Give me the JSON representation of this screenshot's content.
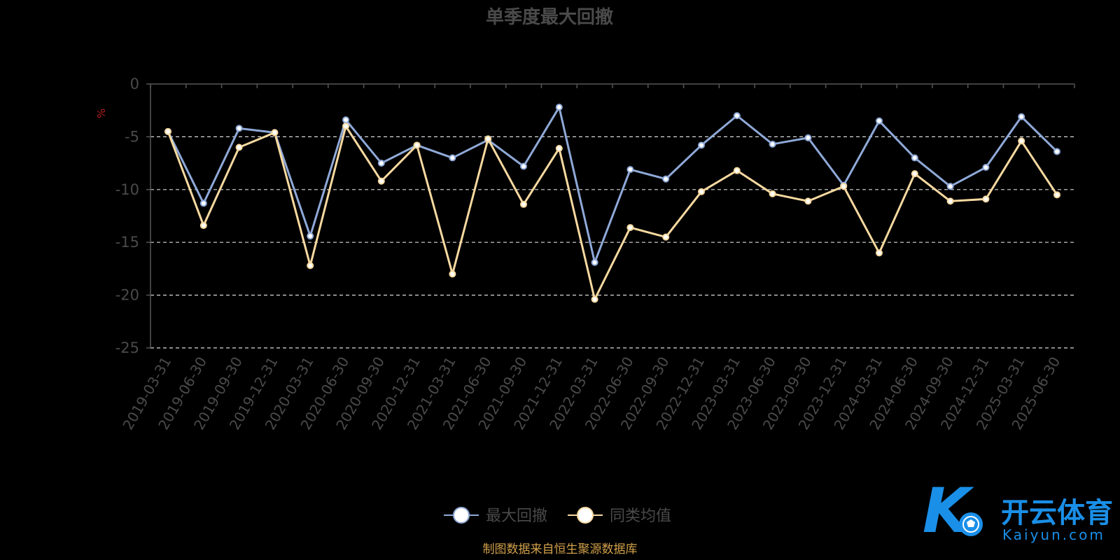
{
  "chart_data": {
    "type": "line",
    "title": "单季度最大回撤",
    "ylabel": "%",
    "ylim": [
      -25,
      0
    ],
    "yticks": [
      0,
      -5,
      -10,
      -15,
      -20,
      -25
    ],
    "grid": true,
    "legend_position": "bottom",
    "categories": [
      "2019-03-31",
      "2019-06-30",
      "2019-09-30",
      "2019-12-31",
      "2020-03-31",
      "2020-06-30",
      "2020-09-30",
      "2020-12-31",
      "2021-03-31",
      "2021-06-30",
      "2021-09-30",
      "2021-12-31",
      "2022-03-31",
      "2022-06-30",
      "2022-09-30",
      "2022-12-31",
      "2023-03-31",
      "2023-06-30",
      "2023-09-30",
      "2023-12-31",
      "2024-03-31",
      "2024-06-30",
      "2024-09-30",
      "2024-12-31",
      "2025-03-31",
      "2025-06-30"
    ],
    "series": [
      {
        "name": "最大回撤",
        "color": "#8fa9d8",
        "values": [
          -4.5,
          -11.3,
          -4.2,
          -4.6,
          -14.4,
          -3.4,
          -7.5,
          -5.8,
          -7.0,
          -5.3,
          -7.8,
          -2.2,
          -16.9,
          -8.1,
          -9.0,
          -5.8,
          -3.0,
          -5.7,
          -5.1,
          -9.6,
          -3.5,
          -7.0,
          -9.7,
          -7.9,
          -3.1,
          -6.4
        ]
      },
      {
        "name": "同类均值",
        "color": "#f7d9a0",
        "values": [
          -4.5,
          -13.4,
          -6.0,
          -4.6,
          -17.2,
          -4.0,
          -9.2,
          -5.8,
          -18.0,
          -5.2,
          -11.4,
          -6.1,
          -20.4,
          -13.6,
          -14.5,
          -10.2,
          -8.2,
          -10.4,
          -11.1,
          -9.7,
          -16.0,
          -8.5,
          -11.1,
          -10.9,
          -5.4,
          -10.5
        ]
      }
    ]
  },
  "source_note": "制图数据来自恒生聚源数据库",
  "watermark": {
    "brand_cn": "开云体育",
    "brand_en": "Kaiyun.com",
    "logo_letter": "K"
  },
  "colors": {
    "background": "#000000",
    "axis": "#555555",
    "grid": "#d9d9d9",
    "text": "#4a4a4a",
    "ylabel": "#b81e1e",
    "source": "#d1a04a",
    "watermark": "#1a8fe8"
  }
}
